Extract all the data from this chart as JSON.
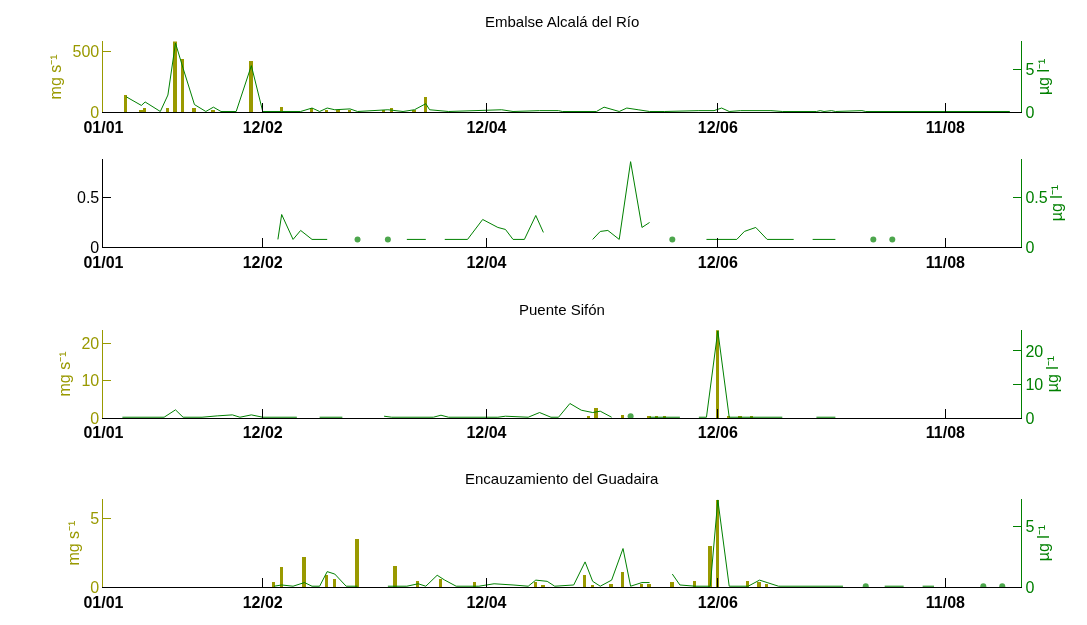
{
  "chart_data": [
    {
      "type": "bar",
      "title": "Embalse Alcalá del Río",
      "ylabel": "mg s⁻¹",
      "y2label": "µg l⁻¹",
      "xlim": [
        "--01-01",
        "--08-31"
      ],
      "xticks": [
        {
          "value": "--01-01",
          "label": "01/01"
        },
        {
          "value": "--02-12",
          "label": "12/02"
        },
        {
          "value": "--04-12",
          "label": "12/04"
        },
        {
          "value": "--06-12",
          "label": "12/06"
        },
        {
          "value": "--08-11",
          "label": "11/08"
        }
      ],
      "ylim": [
        0,
        580
      ],
      "yticks": [
        0,
        500
      ],
      "y2lim": [
        0,
        8.2
      ],
      "y2ticks": [
        0,
        5
      ],
      "series": [
        {
          "color": "#999900",
          "x": [
            "--01-07",
            "--01-11",
            "--01-12",
            "--01-18",
            "--01-20",
            "--01-22",
            "--01-25",
            "--01-30",
            "--02-09",
            "--02-17",
            "--02-25",
            "--03-01",
            "--03-04",
            "--03-07",
            "--03-16",
            "--03-18",
            "--03-24",
            "--03-27"
          ],
          "values": [
            140,
            10,
            30,
            30,
            580,
            430,
            30,
            20,
            420,
            40,
            30,
            20,
            20,
            20,
            20,
            30,
            10,
            120
          ]
        },
        {
          "type": "line",
          "axis": "y2",
          "color": "#008000",
          "x": [
            "--01-07",
            "--01-11",
            "--01-12",
            "--01-16",
            "--01-18",
            "--01-20",
            "--01-22",
            "--01-25",
            "--01-28",
            "--01-30",
            "--02-01",
            "--02-05",
            "--02-09",
            "--02-12",
            "--02-17",
            "--02-22",
            "--02-25",
            "--02-27",
            "--03-01",
            "--03-03",
            "--03-07",
            "--03-09",
            "--03-17",
            "--03-21",
            "--03-24",
            "--03-27",
            "--03-28",
            "--04-02",
            "--04-16",
            "--04-19",
            "--04-26",
            "--05-01",
            "--05-02",
            "--05-11",
            "--05-13",
            "--05-17",
            "--05-19",
            "--05-22",
            "--05-25",
            "--05-29",
            "--06-07",
            "--06-11",
            "--06-13",
            "--06-15",
            "--06-18",
            "--06-26",
            "--06-29",
            "--07-08",
            "--07-09",
            "--07-10",
            "--07-12",
            "--07-13",
            "--07-20",
            "--07-21",
            "--08-28"
          ],
          "values": [
            1.8,
            0.8,
            1.2,
            0.1,
            2.0,
            8.0,
            5.1,
            0.9,
            0.1,
            0.6,
            0.1,
            0.1,
            5.4,
            0.1,
            0.1,
            0.1,
            0.5,
            0.1,
            0.5,
            0.3,
            0.4,
            0.1,
            0.3,
            0.1,
            0.3,
            1.0,
            0.3,
            0.1,
            0.3,
            0.1,
            0.2,
            0.2,
            0.1,
            0.1,
            0.6,
            0.1,
            0.5,
            0.3,
            0.1,
            0.1,
            0.2,
            0.2,
            0.5,
            0.1,
            0.2,
            0.2,
            0.1,
            0.1,
            0.2,
            0.1,
            0.2,
            0.1,
            0.2,
            0.1,
            0.1
          ]
        }
      ]
    },
    {
      "type": "line",
      "y2label": "µg l⁻¹",
      "xlim": [
        "--01-01",
        "--08-31"
      ],
      "xticks": [
        {
          "value": "--01-01",
          "label": "01/01"
        },
        {
          "value": "--02-12",
          "label": "12/02"
        },
        {
          "value": "--04-12",
          "label": "12/04"
        },
        {
          "value": "--06-12",
          "label": "12/06"
        },
        {
          "value": "--08-11",
          "label": "11/08"
        }
      ],
      "ylim": [
        0,
        0.89
      ],
      "yticks": [
        0,
        0.5
      ],
      "y2lim": [
        0,
        0.89
      ],
      "y2ticks": [
        0,
        0.5
      ],
      "series": [
        {
          "axis": "y2",
          "color": "#008000",
          "x": [
            "--02-16",
            "--02-17",
            "--02-20",
            "--02-22",
            "--02-25",
            "--03-01",
            "--03-05",
            "--03-09",
            "--03-13",
            "--03-17",
            "--03-19",
            "--03-22",
            "--03-27",
            "--03-29",
            "--04-01",
            "--04-07",
            "--04-11",
            "--04-15",
            "--04-17",
            "--04-19",
            "--04-22",
            "--04-25",
            "--04-27",
            "--05-03",
            "--05-10",
            "--05-12",
            "--05-14",
            "--05-17",
            "--05-20",
            "--05-23",
            "--05-25",
            "--05-28",
            "--05-31",
            "--06-04",
            "--06-09",
            "--06-17",
            "--06-19",
            "--06-22",
            "--06-25",
            "--07-02",
            "--07-05",
            "--07-07",
            "--07-13",
            "--07-17",
            "--07-23",
            "--07-26",
            "--07-28"
          ],
          "values": [
            0.08,
            0.33,
            0.08,
            0.17,
            0.08,
            0.08,
            null,
            0.08,
            null,
            0.08,
            null,
            0.08,
            0.08,
            null,
            0.08,
            0.08,
            0.28,
            0.2,
            0.18,
            0.08,
            0.08,
            0.32,
            0.15,
            null,
            0.08,
            0.16,
            0.17,
            0.08,
            0.86,
            0.2,
            0.25,
            null,
            0.08,
            null,
            0.08,
            0.08,
            0.16,
            0.2,
            0.08,
            0.08,
            null,
            0.08,
            0.08,
            null,
            0.08,
            null,
            0.08
          ]
        }
      ]
    },
    {
      "type": "bar",
      "title": "Puente Sifón",
      "ylabel": "mg s⁻¹",
      "y2label": "µg l⁻¹",
      "xlim": [
        "--01-01",
        "--08-31"
      ],
      "xticks": [
        {
          "value": "--01-01",
          "label": "01/01"
        },
        {
          "value": "--02-12",
          "label": "12/02"
        },
        {
          "value": "--04-12",
          "label": "12/04"
        },
        {
          "value": "--06-12",
          "label": "12/06"
        },
        {
          "value": "--08-11",
          "label": "11/08"
        }
      ],
      "ylim": [
        0,
        23.5
      ],
      "yticks": [
        0,
        10,
        20
      ],
      "y2lim": [
        0,
        26.2
      ],
      "y2ticks": [
        0,
        10,
        20
      ],
      "series": [
        {
          "color": "#999900",
          "x": [
            "--05-09",
            "--05-11",
            "--05-18",
            "--05-25",
            "--05-27",
            "--05-29",
            "--06-12",
            "--06-15",
            "--06-18",
            "--06-21"
          ],
          "values": [
            0.5,
            2.5,
            0.8,
            0.4,
            0.4,
            0.4,
            23.4,
            0.4,
            0.4,
            0.4
          ]
        },
        {
          "type": "line",
          "axis": "y2",
          "color": "#008000",
          "x": [
            "--01-06",
            "--01-17",
            "--01-20",
            "--01-22",
            "--01-27",
            "--01-31",
            "--02-04",
            "--02-06",
            "--02-09",
            "--02-12",
            "--02-21",
            "--02-23",
            "--02-27",
            "--03-05",
            "--03-11",
            "--03-16",
            "--03-18",
            "--03-29",
            "--03-31",
            "--04-02",
            "--04-15",
            "--04-17",
            "--04-23",
            "--04-26",
            "--04-29",
            "--05-01",
            "--05-04",
            "--05-07",
            "--05-10",
            "--05-12",
            "--05-15",
            "--05-17",
            "--05-20",
            "--05-22",
            "--05-25",
            "--06-02",
            "--06-04",
            "--06-07",
            "--06-09",
            "--06-12",
            "--06-15",
            "--06-29",
            "--07-03",
            "--07-08",
            "--07-13"
          ],
          "values": [
            0.2,
            0.2,
            2.4,
            0.2,
            0.2,
            0.6,
            0.9,
            0.2,
            0.9,
            0.2,
            0.2,
            null,
            0.2,
            0.2,
            null,
            0.5,
            0.2,
            0.2,
            0.8,
            0.2,
            0.2,
            0.5,
            0.2,
            1.6,
            0.2,
            0.2,
            4.3,
            2.3,
            1.6,
            2.0,
            0.2,
            null,
            0.5,
            null,
            0.2,
            0.2,
            null,
            0.2,
            0.2,
            26.0,
            0.2,
            0.2,
            null,
            0.2,
            0.2
          ]
        }
      ]
    },
    {
      "type": "bar",
      "title": "Encauzamiento del Guadaira",
      "ylabel": "mg s⁻¹",
      "y2label": "µg l⁻¹",
      "xlim": [
        "--01-01",
        "--08-31"
      ],
      "xticks": [
        {
          "value": "--01-01",
          "label": "01/01"
        },
        {
          "value": "--02-12",
          "label": "12/02"
        },
        {
          "value": "--04-12",
          "label": "12/04"
        },
        {
          "value": "--06-12",
          "label": "12/06"
        },
        {
          "value": "--08-11",
          "label": "11/08"
        }
      ],
      "ylim": [
        0,
        6.4
      ],
      "yticks": [
        0,
        5
      ],
      "y2lim": [
        0,
        7.3
      ],
      "y2ticks": [
        0,
        5
      ],
      "series": [
        {
          "color": "#999900",
          "x": [
            "--02-15",
            "--02-17",
            "--02-23",
            "--03-01",
            "--03-03",
            "--03-09",
            "--03-19",
            "--03-25",
            "--03-31",
            "--04-09",
            "--04-25",
            "--04-27",
            "--05-08",
            "--05-10",
            "--05-15",
            "--05-18",
            "--05-23",
            "--05-25",
            "--05-31",
            "--06-06",
            "--06-10",
            "--06-12",
            "--06-20",
            "--06-23",
            "--06-25"
          ],
          "values": [
            0.4,
            1.5,
            2.2,
            0.9,
            0.6,
            3.5,
            1.6,
            0.5,
            0.6,
            0.4,
            0.4,
            0.2,
            0.9,
            0.2,
            0.3,
            1.1,
            0.3,
            0.3,
            0.4,
            0.5,
            3.0,
            6.3,
            0.5,
            0.4,
            0.3
          ]
        },
        {
          "type": "line",
          "axis": "y2",
          "color": "#008000",
          "x": [
            "--02-15",
            "--02-17",
            "--02-20",
            "--02-23",
            "--02-25",
            "--02-27",
            "--03-01",
            "--03-03",
            "--03-06",
            "--03-09",
            "--03-13",
            "--03-17",
            "--03-22",
            "--03-25",
            "--03-27",
            "--03-30",
            "--04-01",
            "--04-04",
            "--04-10",
            "--04-14",
            "--04-19",
            "--04-23",
            "--04-25",
            "--04-28",
            "--04-30",
            "--05-05",
            "--05-08",
            "--05-10",
            "--05-12",
            "--05-15",
            "--05-18",
            "--05-20",
            "--05-23",
            "--05-25",
            "--05-28",
            "--05-31",
            "--06-02",
            "--06-06",
            "--06-10",
            "--06-12",
            "--06-15",
            "--06-20",
            "--06-23",
            "--06-25",
            "--06-28",
            "--07-15",
            "--07-18",
            "--07-21",
            "--07-23",
            "--07-26",
            "--07-31",
            "--08-02",
            "--08-05",
            "--08-08",
            "--08-14",
            "--08-21",
            "--08-23",
            "--08-26"
          ],
          "values": [
            0.1,
            0.2,
            0.1,
            0.4,
            0.1,
            0.1,
            1.3,
            1.1,
            0.1,
            0.1,
            null,
            0.1,
            0.1,
            0.3,
            0.1,
            1.0,
            0.6,
            0.1,
            0.1,
            0.3,
            0.2,
            0.1,
            0.6,
            0.5,
            0.1,
            0.2,
            2.1,
            0.5,
            0.1,
            0.6,
            3.2,
            0.1,
            0.4,
            0.4,
            null,
            1.1,
            0.2,
            0.1,
            0.1,
            7.2,
            0.1,
            0.1,
            0.6,
            0.4,
            0.1,
            0.1,
            null,
            0.1,
            null,
            0.1,
            0.1,
            null,
            0.1,
            0.1,
            null,
            0.1,
            null,
            0.1
          ]
        }
      ]
    }
  ]
}
